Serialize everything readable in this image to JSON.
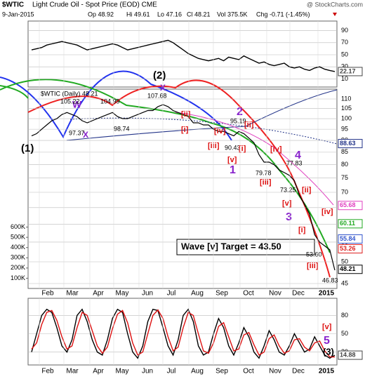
{
  "header": {
    "symbol": "$WTIC",
    "name": "Light Crude Oil - Spot Price (EOD) CME",
    "brand": "@ StockCharts.com",
    "date": "9-Jan-2015",
    "open": "Op 48.92",
    "high": "Hi 49.61",
    "low": "Lo 47.16",
    "close": "Cl 48.21",
    "volume": "Vol 375.5K",
    "change": "Chg -0.71 (-1.45%)"
  },
  "chart_data": [
    {
      "type": "line",
      "ylim": [
        0,
        100
      ],
      "yticks": [
        10,
        30,
        50,
        70,
        90
      ],
      "grid": true,
      "series": [
        {
          "color": "#000000",
          "values": [
            58,
            60,
            62,
            66,
            68,
            70,
            72,
            70,
            68,
            66,
            62,
            58,
            60,
            62,
            64,
            66,
            68,
            66,
            62,
            58,
            60,
            62,
            64,
            66,
            68,
            70,
            72,
            74,
            70,
            64,
            58,
            52,
            48,
            44,
            42,
            40,
            42,
            44,
            40,
            46,
            44,
            42,
            48,
            44,
            40,
            36,
            38,
            34,
            32,
            34,
            36,
            30,
            28,
            30,
            26,
            24,
            28,
            30,
            26,
            24,
            22.17
          ]
        }
      ],
      "right_labels": [
        {
          "value": 22.17,
          "color": "#444444"
        }
      ]
    },
    {
      "type": "line",
      "log_scale": true,
      "ylim": [
        45,
        110
      ],
      "yticks": [
        45,
        50,
        55,
        60,
        65,
        70,
        75,
        80,
        85,
        90,
        95,
        100,
        105,
        110
      ],
      "grid": true,
      "y2lim": [
        0,
        700000
      ],
      "y2ticks": [
        {
          "value": 100000,
          "label": "100K"
        },
        {
          "value": 200000,
          "label": "200K"
        },
        {
          "value": 300000,
          "label": "300K"
        },
        {
          "value": 400000,
          "label": "400K"
        },
        {
          "value": 500000,
          "label": "500K"
        },
        {
          "value": 600000,
          "label": "600K"
        }
      ],
      "legend_text": "$WTIC (Daily) 48.21",
      "series": [
        {
          "color": "#000000",
          "values": [
            92,
            93,
            95,
            97,
            99,
            100,
            102,
            103,
            102,
            101,
            99,
            98,
            99,
            100,
            101,
            102,
            103,
            101,
            100,
            100,
            101,
            102,
            103,
            104,
            104,
            106,
            107,
            106,
            104,
            103,
            102,
            101,
            98,
            98,
            97,
            97,
            95,
            94,
            94,
            93,
            92,
            94,
            93,
            91,
            89,
            84,
            81,
            81,
            80,
            78,
            77,
            76,
            74,
            69,
            66,
            63,
            57,
            55,
            54,
            53,
            48
          ]
        }
      ],
      "right_labels": [
        {
          "value": 88.63,
          "color": "#223388"
        },
        {
          "value": 65.68,
          "color": "#e040c0"
        },
        {
          "value": 60.11,
          "color": "#22aa22"
        },
        {
          "value": 55.84,
          "color": "#3355cc"
        },
        {
          "value": 53.26,
          "color": "#dd2222"
        },
        {
          "value": 48.21,
          "color": "#000000"
        }
      ],
      "annotations": [
        {
          "text": "(1)",
          "color": "#000000"
        },
        {
          "text": "(2)",
          "color": "#000000"
        },
        {
          "text": "W",
          "color": "#8822cc"
        },
        {
          "text": "X",
          "color": "#8822cc"
        },
        {
          "text": "X",
          "color": "#8822cc"
        },
        {
          "text": "105.22",
          "color": "#000000"
        },
        {
          "text": "104.99",
          "color": "#000000"
        },
        {
          "text": "107.68",
          "color": "#000000"
        },
        {
          "text": "97.37",
          "color": "#000000"
        },
        {
          "text": "98.74",
          "color": "#000000"
        },
        {
          "text": "95.19",
          "color": "#000000"
        },
        {
          "text": "90.43",
          "color": "#000000"
        },
        {
          "text": "79.78",
          "color": "#000000"
        },
        {
          "text": "77.83",
          "color": "#000000"
        },
        {
          "text": "73.25",
          "color": "#000000"
        },
        {
          "text": "53.60",
          "color": "#000000"
        },
        {
          "text": "46.83",
          "color": "#000000"
        },
        {
          "text": "[i]",
          "color": "#dd1111"
        },
        {
          "text": "[ii]",
          "color": "#dd1111"
        },
        {
          "text": "[iii]",
          "color": "#dd1111"
        },
        {
          "text": "[iv]",
          "color": "#dd1111"
        },
        {
          "text": "[v]",
          "color": "#dd1111"
        },
        {
          "text": "1",
          "color": "#8822cc"
        },
        {
          "text": "[i]",
          "color": "#dd1111"
        },
        {
          "text": "2",
          "color": "#8822cc"
        },
        {
          "text": "[ii]",
          "color": "#dd1111"
        },
        {
          "text": "[iii]",
          "color": "#dd1111"
        },
        {
          "text": "[iv]",
          "color": "#dd1111"
        },
        {
          "text": "4",
          "color": "#8822cc"
        },
        {
          "text": "[v]",
          "color": "#dd1111"
        },
        {
          "text": "3",
          "color": "#8822cc"
        },
        {
          "text": "[i]",
          "color": "#dd1111"
        },
        {
          "text": "[ii]",
          "color": "#dd1111"
        },
        {
          "text": "[iv]",
          "color": "#dd1111"
        },
        {
          "text": "[iii]",
          "color": "#dd1111"
        }
      ],
      "target_text": "Wave [v] Target = 43.50"
    },
    {
      "type": "line",
      "ylim": [
        0,
        100
      ],
      "yticks": [
        20,
        50,
        80
      ],
      "grid": true,
      "series": [
        {
          "color": "#000000",
          "values": [
            20,
            50,
            80,
            90,
            85,
            60,
            30,
            20,
            40,
            80,
            90,
            70,
            40,
            20,
            15,
            40,
            75,
            90,
            85,
            50,
            20,
            10,
            30,
            70,
            90,
            88,
            60,
            30,
            15,
            40,
            80,
            90,
            70,
            30,
            15,
            20,
            50,
            75,
            60,
            30,
            15,
            35,
            60,
            45,
            20,
            10,
            30,
            55,
            40,
            20,
            15,
            30,
            50,
            35,
            20,
            25,
            45,
            30,
            15,
            10,
            14.88
          ]
        },
        {
          "color": "#dd1111",
          "values": [
            25,
            35,
            65,
            85,
            88,
            72,
            45,
            25,
            30,
            60,
            85,
            80,
            55,
            30,
            18,
            28,
            58,
            82,
            88,
            68,
            35,
            15,
            20,
            50,
            80,
            89,
            75,
            45,
            22,
            28,
            60,
            85,
            80,
            50,
            22,
            18,
            35,
            62,
            68,
            45,
            22,
            25,
            48,
            52,
            32,
            15,
            20,
            42,
            48,
            30,
            18,
            22,
            40,
            42,
            28,
            22,
            35,
            38,
            22,
            12,
            12
          ]
        }
      ],
      "right_labels": [
        {
          "value": 14.88,
          "color": "#444444"
        }
      ],
      "annotations": [
        {
          "text": "[v]",
          "color": "#dd1111"
        },
        {
          "text": "5",
          "color": "#8822cc"
        },
        {
          "text": "(3)",
          "color": "#000000"
        }
      ]
    }
  ],
  "month_labels": [
    "Feb",
    "Mar",
    "Apr",
    "May",
    "Jun",
    "Jul",
    "Aug",
    "Sep",
    "Oct",
    "Nov",
    "Dec",
    "2015"
  ]
}
